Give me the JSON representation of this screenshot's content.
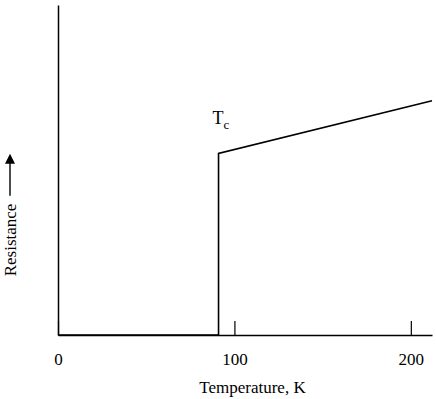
{
  "chart_data": {
    "type": "line",
    "x_label": "Temperature, K",
    "y_label": "Resistance",
    "x": [
      0,
      91,
      91,
      212
    ],
    "values": [
      0,
      0,
      55,
      71
    ],
    "color": "#000000",
    "xlim": [
      0,
      212
    ],
    "xticks": [
      0,
      100,
      200
    ],
    "ylim": [
      0,
      100
    ],
    "yticks": [],
    "tick_labels": "x",
    "grid": false,
    "annotations": [
      {
        "text": "Tc",
        "x": 91,
        "y": 55
      }
    ]
  }
}
